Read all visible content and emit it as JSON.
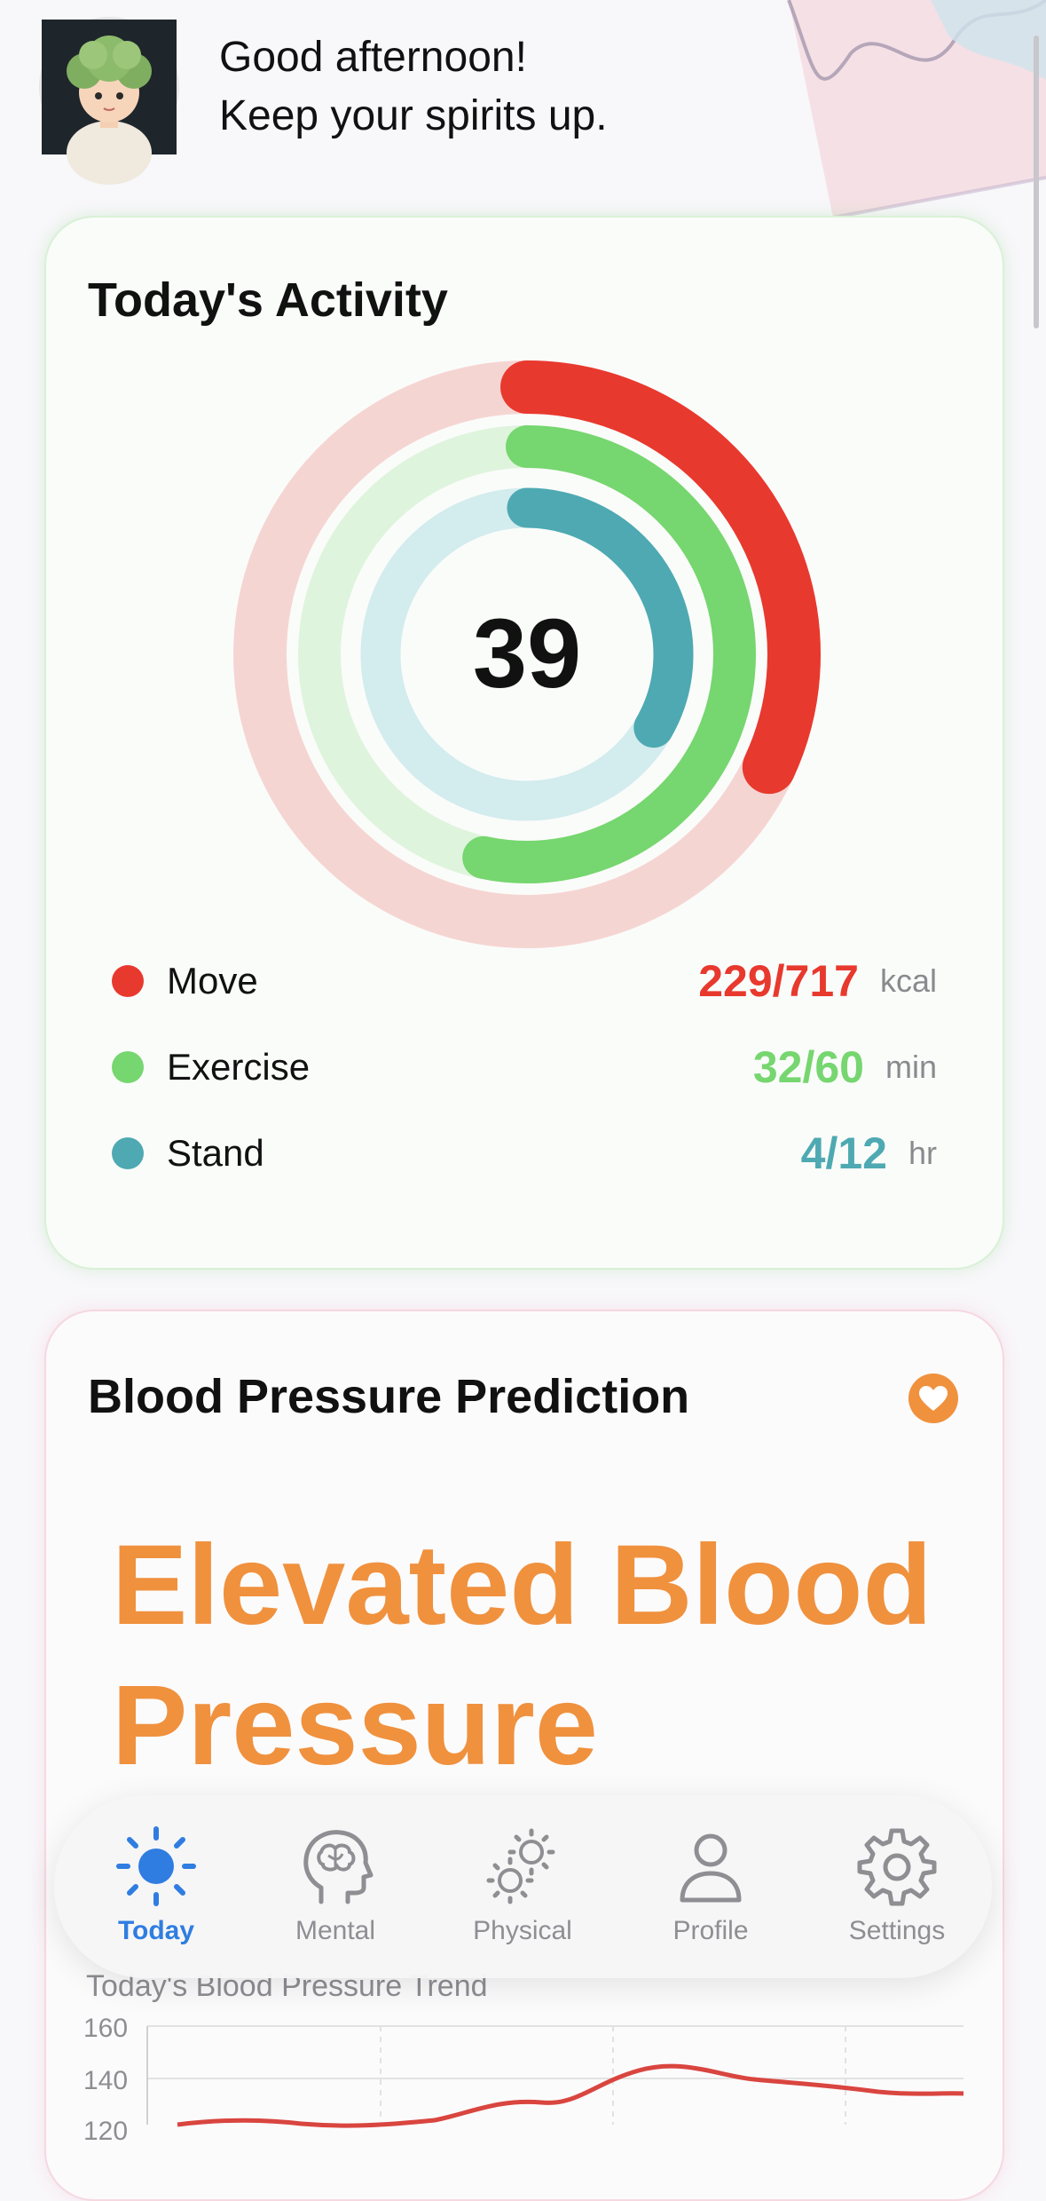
{
  "greeting": {
    "line1": "Good afternoon!",
    "line2": "Keep your spirits up."
  },
  "activity": {
    "title": "Today's Activity",
    "center_value": "39",
    "metrics": [
      {
        "label": "Move",
        "value": "229/717",
        "unit": "kcal",
        "current": 229,
        "goal": 717,
        "color": "#e8392e",
        "track_color": "#f5d5d2"
      },
      {
        "label": "Exercise",
        "value": "32/60",
        "unit": "min",
        "current": 32,
        "goal": 60,
        "color": "#76d66f",
        "track_color": "#dff4dc"
      },
      {
        "label": "Stand",
        "value": "4/12",
        "unit": "hr",
        "current": 4,
        "goal": 12,
        "color": "#4ea9b2",
        "track_color": "#d3ecee"
      }
    ]
  },
  "blood_pressure": {
    "title": "Blood Pressure Prediction",
    "status": "Elevated Blood Pressure",
    "status_color": "#f0913e",
    "trend": {
      "title": "Today's Blood Pressure Trend",
      "y_ticks": [
        "160",
        "140",
        "120"
      ],
      "line_color": "#d9453f"
    }
  },
  "tabbar": {
    "items": [
      {
        "label": "Today",
        "icon": "sun-icon",
        "active": true
      },
      {
        "label": "Mental",
        "icon": "brain-head-icon",
        "active": false
      },
      {
        "label": "Physical",
        "icon": "gears-icon",
        "active": false
      },
      {
        "label": "Profile",
        "icon": "person-icon",
        "active": false
      },
      {
        "label": "Settings",
        "icon": "gear-icon",
        "active": false
      }
    ],
    "active_color": "#2f7de1",
    "inactive_color": "#8e8e93"
  }
}
